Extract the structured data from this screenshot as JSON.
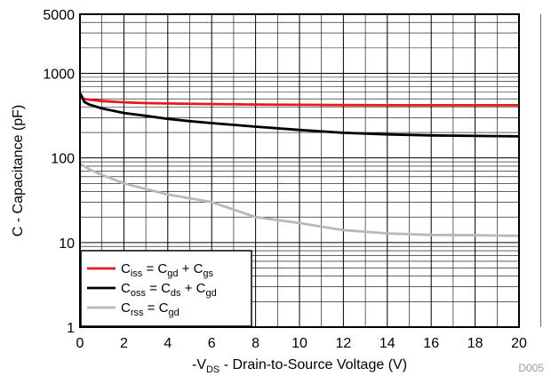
{
  "chart_data": {
    "type": "line",
    "xlabel_parts": [
      "-V",
      "DS",
      " - Drain-to-Source Voltage (V)"
    ],
    "ylabel": "C - Capacitance (pF)",
    "xlim": [
      0,
      20
    ],
    "ylim": [
      1,
      5000
    ],
    "y_scale": "log",
    "x_ticks": [
      0,
      2,
      4,
      6,
      8,
      10,
      12,
      14,
      16,
      18,
      20
    ],
    "y_ticks": [
      1,
      10,
      100,
      1000,
      5000
    ],
    "grid": true,
    "legend_position": "bottom-left",
    "code": "D005",
    "series": [
      {
        "legend_parts": [
          [
            "C",
            ""
          ],
          [
            "iss",
            "sub"
          ],
          [
            " = C",
            ""
          ],
          [
            "gd",
            "sub"
          ],
          [
            " + C",
            ""
          ],
          [
            "gs",
            "sub"
          ]
        ],
        "color": "#e8191c",
        "points": [
          [
            0,
            580
          ],
          [
            0.15,
            500
          ],
          [
            0.5,
            485
          ],
          [
            1,
            470
          ],
          [
            2,
            455
          ],
          [
            3,
            445
          ],
          [
            4,
            440
          ],
          [
            6,
            433
          ],
          [
            8,
            428
          ],
          [
            10,
            425
          ],
          [
            12,
            422
          ],
          [
            14,
            420
          ],
          [
            16,
            420
          ],
          [
            18,
            420
          ],
          [
            20,
            420
          ]
        ]
      },
      {
        "legend_parts": [
          [
            "C",
            ""
          ],
          [
            "oss",
            "sub"
          ],
          [
            " = C",
            ""
          ],
          [
            "ds",
            "sub"
          ],
          [
            " + C",
            ""
          ],
          [
            "gd",
            "sub"
          ]
        ],
        "color": "#000000",
        "points": [
          [
            0,
            580
          ],
          [
            0.1,
            520
          ],
          [
            0.2,
            460
          ],
          [
            0.4,
            430
          ],
          [
            1,
            385
          ],
          [
            2,
            340
          ],
          [
            3,
            315
          ],
          [
            4,
            290
          ],
          [
            5,
            272
          ],
          [
            6,
            258
          ],
          [
            8,
            234
          ],
          [
            10,
            214
          ],
          [
            12,
            198
          ],
          [
            14,
            190
          ],
          [
            16,
            185
          ],
          [
            18,
            182
          ],
          [
            20,
            180
          ]
        ]
      },
      {
        "legend_parts": [
          [
            "C",
            ""
          ],
          [
            "rss",
            "sub"
          ],
          [
            " = C",
            ""
          ],
          [
            "gd",
            "sub"
          ]
        ],
        "color": "#b8b8b8",
        "points": [
          [
            0,
            85
          ],
          [
            0.5,
            72
          ],
          [
            1,
            63
          ],
          [
            2,
            50
          ],
          [
            3,
            43
          ],
          [
            4,
            37
          ],
          [
            6,
            30
          ],
          [
            8,
            20
          ],
          [
            10,
            17
          ],
          [
            12,
            14
          ],
          [
            14,
            12.8
          ],
          [
            16,
            12.3
          ],
          [
            18,
            12.2
          ],
          [
            20,
            12
          ]
        ]
      }
    ]
  }
}
